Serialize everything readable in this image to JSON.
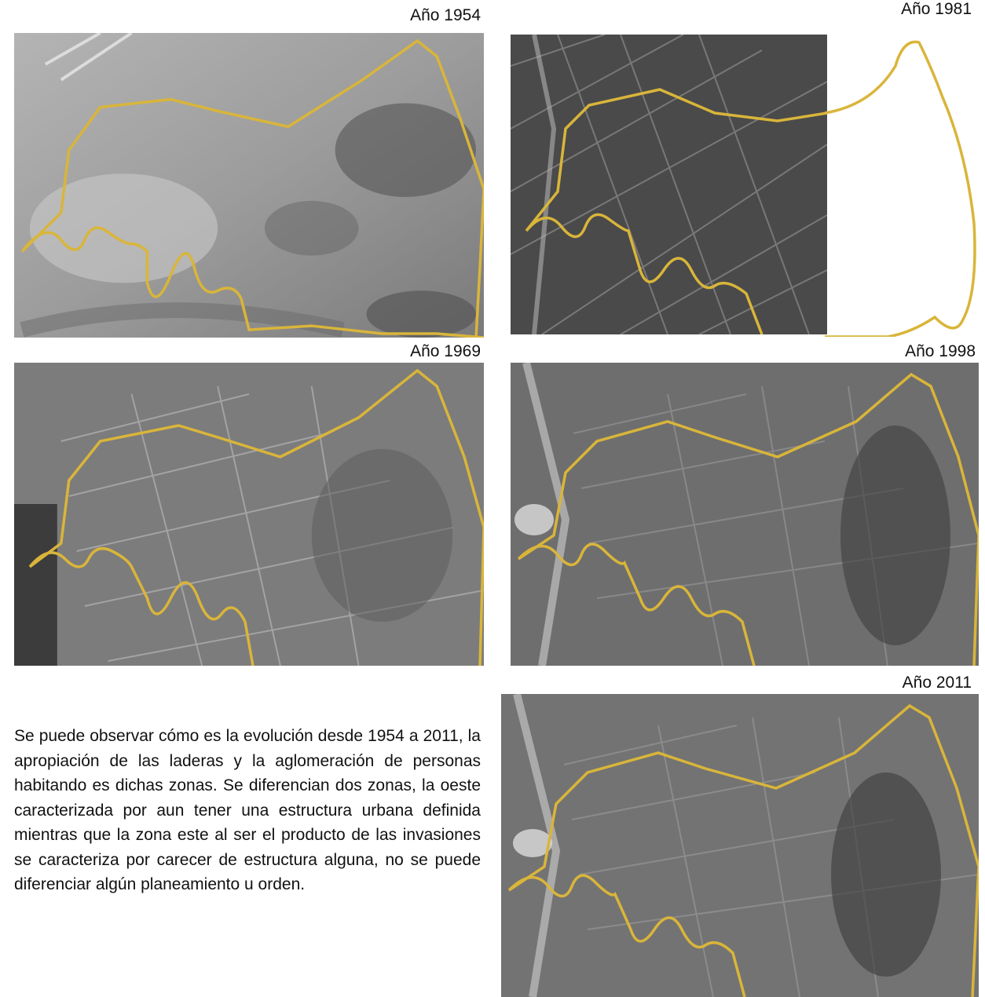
{
  "panels": [
    {
      "id": "1954",
      "caption": "Año 1954"
    },
    {
      "id": "1981",
      "caption": "Año 1981"
    },
    {
      "id": "1969",
      "caption": "Año 1969"
    },
    {
      "id": "1998",
      "caption": "Año 1998"
    },
    {
      "id": "2011",
      "caption": "Año 2011"
    }
  ],
  "description": "Se puede observar cómo es la evolución desde 1954 a 2011, la apropiación de las laderas y la aglomeración de personas habitando es dichas zonas. Se diferencian dos zonas, la oeste caracterizada por aun tener una estructura urbana definida mientras que la zona este al ser el producto de las invasiones se caracteriza por carecer de estructura alguna, no se puede diferenciar algún planeamiento u orden.",
  "colors": {
    "outline": "#d9b53a",
    "photo_1954": "#9a9a9a",
    "photo_1969": "#7c7c7c",
    "photo_1981": "#4a4a4a",
    "photo_1998": "#6e6e6e",
    "photo_2011": "#737373"
  }
}
